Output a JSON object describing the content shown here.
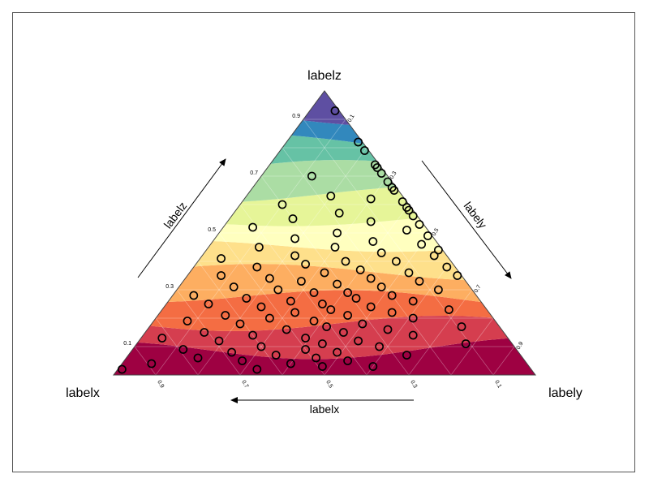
{
  "chart_data": {
    "type": "ternary-scatter-contour",
    "corner_labels": {
      "x": "labelx",
      "y": "labely",
      "z": "labelz"
    },
    "axis_labels": {
      "left": "labelz",
      "right": "labely",
      "bottom": "labelx"
    },
    "tick_labels": {
      "left": [
        "0.1",
        "0.3",
        "0.5",
        "0.7",
        "0.9"
      ],
      "right": [
        "0.1",
        "0.3",
        "0.5",
        "0.7",
        "0.9"
      ],
      "bottom": [
        "0.9",
        "0.7",
        "0.5",
        "0.3",
        "0.1"
      ]
    },
    "contour_colormap": "Spectral_r",
    "contour_colors": [
      "#9e0142",
      "#d53e4f",
      "#f46d43",
      "#fdae61",
      "#fee08b",
      "#ffffbf",
      "#e6f598",
      "#abdda4",
      "#66c2a5",
      "#3288bd",
      "#5e4fa2"
    ],
    "grid": true,
    "points": [
      {
        "z": 0.93,
        "y": 0.47
      },
      {
        "z": 0.82,
        "y": 0.55
      },
      {
        "z": 0.79,
        "y": 0.43
      },
      {
        "z": 0.74,
        "y": 0.39
      },
      {
        "z": 0.73,
        "y": 0.48
      },
      {
        "z": 0.71,
        "y": 0.56
      },
      {
        "z": 0.7,
        "y": 0.12
      },
      {
        "z": 0.68,
        "y": 0.36
      },
      {
        "z": 0.66,
        "y": 0.45
      },
      {
        "z": 0.65,
        "y": 0.6
      },
      {
        "z": 0.63,
        "y": 0.2
      },
      {
        "z": 0.62,
        "y": 0.3
      },
      {
        "z": 0.61,
        "y": 0.52
      },
      {
        "z": 0.6,
        "y": 0.1
      },
      {
        "z": 0.59,
        "y": 0.4
      },
      {
        "z": 0.58,
        "y": 0.66
      },
      {
        "z": 0.57,
        "y": 0.25
      },
      {
        "z": 0.56,
        "y": 0.48
      },
      {
        "z": 0.55,
        "y": 0.15
      },
      {
        "z": 0.54,
        "y": 0.34
      },
      {
        "z": 0.53,
        "y": 0.58
      },
      {
        "z": 0.52,
        "y": 0.07
      },
      {
        "z": 0.51,
        "y": 0.44
      },
      {
        "z": 0.5,
        "y": 0.28
      },
      {
        "z": 0.49,
        "y": 0.62
      },
      {
        "z": 0.48,
        "y": 0.19
      },
      {
        "z": 0.47,
        "y": 0.38
      },
      {
        "z": 0.46,
        "y": 0.5
      },
      {
        "z": 0.45,
        "y": 0.12
      },
      {
        "z": 0.45,
        "y": 0.3
      },
      {
        "z": 0.44,
        "y": 0.7
      },
      {
        "z": 0.43,
        "y": 0.42
      },
      {
        "z": 0.42,
        "y": 0.22
      },
      {
        "z": 0.42,
        "y": 0.55
      },
      {
        "z": 0.41,
        "y": 0.05
      },
      {
        "z": 0.4,
        "y": 0.35
      },
      {
        "z": 0.4,
        "y": 0.47
      },
      {
        "z": 0.39,
        "y": 0.26
      },
      {
        "z": 0.38,
        "y": 0.6
      },
      {
        "z": 0.38,
        "y": 0.15
      },
      {
        "z": 0.37,
        "y": 0.4
      },
      {
        "z": 0.36,
        "y": 0.32
      },
      {
        "z": 0.36,
        "y": 0.52
      },
      {
        "z": 0.35,
        "y": 0.08
      },
      {
        "z": 0.35,
        "y": 0.66
      },
      {
        "z": 0.34,
        "y": 0.2
      },
      {
        "z": 0.34,
        "y": 0.44
      },
      {
        "z": 0.33,
        "y": 0.28
      },
      {
        "z": 0.33,
        "y": 0.56
      },
      {
        "z": 0.32,
        "y": 0.37
      },
      {
        "z": 0.31,
        "y": 0.13
      },
      {
        "z": 0.31,
        "y": 0.48
      },
      {
        "z": 0.3,
        "y": 0.24
      },
      {
        "z": 0.3,
        "y": 0.62
      },
      {
        "z": 0.29,
        "y": 0.41
      },
      {
        "z": 0.29,
        "y": 0.33
      },
      {
        "z": 0.28,
        "y": 0.05
      },
      {
        "z": 0.28,
        "y": 0.52
      },
      {
        "z": 0.27,
        "y": 0.18
      },
      {
        "z": 0.27,
        "y": 0.44
      },
      {
        "z": 0.26,
        "y": 0.29
      },
      {
        "z": 0.26,
        "y": 0.58
      },
      {
        "z": 0.25,
        "y": 0.37
      },
      {
        "z": 0.25,
        "y": 0.1
      },
      {
        "z": 0.24,
        "y": 0.49
      },
      {
        "z": 0.24,
        "y": 0.23
      },
      {
        "z": 0.23,
        "y": 0.68
      },
      {
        "z": 0.23,
        "y": 0.4
      },
      {
        "z": 0.22,
        "y": 0.32
      },
      {
        "z": 0.22,
        "y": 0.55
      },
      {
        "z": 0.21,
        "y": 0.16
      },
      {
        "z": 0.21,
        "y": 0.45
      },
      {
        "z": 0.2,
        "y": 0.27
      },
      {
        "z": 0.2,
        "y": 0.61
      },
      {
        "z": 0.19,
        "y": 0.38
      },
      {
        "z": 0.19,
        "y": 0.08
      },
      {
        "z": 0.18,
        "y": 0.5
      },
      {
        "z": 0.18,
        "y": 0.21
      },
      {
        "z": 0.17,
        "y": 0.74
      },
      {
        "z": 0.17,
        "y": 0.42
      },
      {
        "z": 0.16,
        "y": 0.33
      },
      {
        "z": 0.16,
        "y": 0.57
      },
      {
        "z": 0.15,
        "y": 0.14
      },
      {
        "z": 0.15,
        "y": 0.47
      },
      {
        "z": 0.14,
        "y": 0.26
      },
      {
        "z": 0.14,
        "y": 0.64
      },
      {
        "z": 0.13,
        "y": 0.39
      },
      {
        "z": 0.13,
        "y": 0.05
      },
      {
        "z": 0.12,
        "y": 0.52
      },
      {
        "z": 0.12,
        "y": 0.19
      },
      {
        "z": 0.11,
        "y": 0.44
      },
      {
        "z": 0.11,
        "y": 0.78
      },
      {
        "z": 0.1,
        "y": 0.3
      },
      {
        "z": 0.1,
        "y": 0.58
      },
      {
        "z": 0.09,
        "y": 0.12
      },
      {
        "z": 0.09,
        "y": 0.41
      },
      {
        "z": 0.08,
        "y": 0.49
      },
      {
        "z": 0.08,
        "y": 0.24
      },
      {
        "z": 0.07,
        "y": 0.66
      },
      {
        "z": 0.07,
        "y": 0.35
      },
      {
        "z": 0.06,
        "y": 0.45
      },
      {
        "z": 0.06,
        "y": 0.17
      },
      {
        "z": 0.05,
        "y": 0.53
      },
      {
        "z": 0.05,
        "y": 0.28
      },
      {
        "z": 0.04,
        "y": 0.4
      },
      {
        "z": 0.04,
        "y": 0.07
      },
      {
        "z": 0.03,
        "y": 0.48
      },
      {
        "z": 0.03,
        "y": 0.6
      },
      {
        "z": 0.02,
        "y": 0.33
      },
      {
        "z": 0.02,
        "y": 0.01
      }
    ]
  }
}
